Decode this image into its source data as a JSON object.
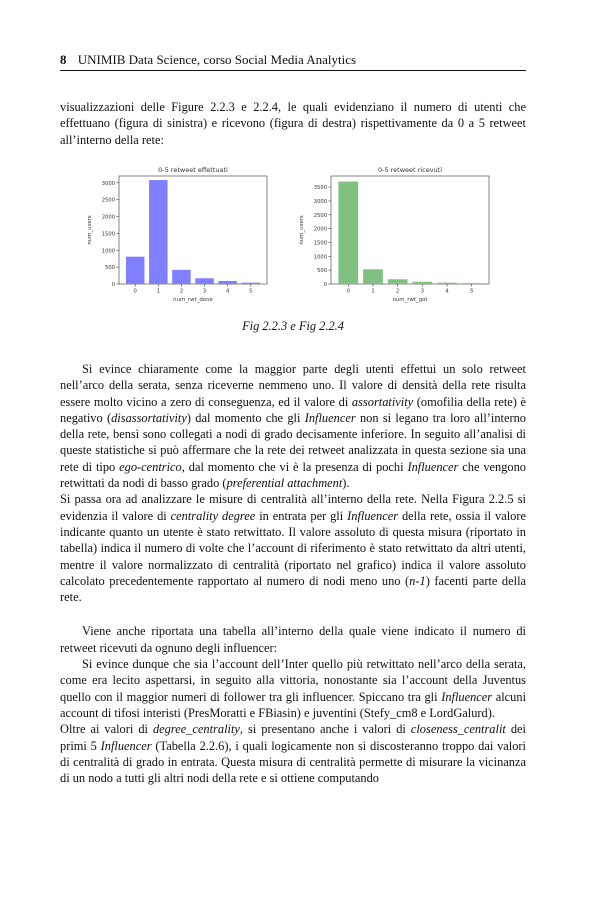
{
  "header": {
    "page_number": "8",
    "title": "UNIMIB Data Science, corso Social Media Analytics"
  },
  "intro": "visualizzazioni delle Figure 2.2.3 e 2.2.4, le quali evidenziano il numero di utenti che effettuano (figura di sinistra) e ricevono (figura di destra) rispettivamente da 0 a 5 retweet all’interno della rete:",
  "figure_caption": "Fig 2.2.3 e Fig 2.2.4",
  "chart_data": [
    {
      "type": "bar",
      "title": "0-5 retweet effettuati",
      "xlabel": "num_rwt_done",
      "ylabel": "num_users",
      "categories": [
        "0",
        "1",
        "2",
        "3",
        "4",
        "5"
      ],
      "values": [
        810,
        3080,
        420,
        170,
        90,
        40
      ],
      "ylim": [
        0,
        3200
      ],
      "yticks": [
        0,
        500,
        1000,
        1500,
        2000,
        2500,
        3000
      ],
      "color": "#8080ff",
      "grid": false
    },
    {
      "type": "bar",
      "title": "0-5 retweet ricevuti",
      "xlabel": "num_rwt_got",
      "ylabel": "num_users",
      "categories": [
        "0",
        "1",
        "2",
        "3",
        "4",
        "5"
      ],
      "values": [
        3700,
        530,
        170,
        80,
        50,
        30
      ],
      "ylim": [
        0,
        3900
      ],
      "yticks": [
        0,
        500,
        1000,
        1500,
        2000,
        2500,
        3000,
        3500
      ],
      "color": "#80c080",
      "grid": false
    }
  ],
  "p1": {
    "s1": "Si evince chiaramente come la maggior parte degli utenti effettui un solo retweet nell’arco della serata, senza riceverne nemmeno uno. Il valore di densità della rete risulta essere molto vicino a zero di conseguenza, ed il valore di ",
    "e1": "assortativity",
    "s2": " (omofilia della rete) è negativo (",
    "e2": "disassortativity",
    "s3": ") dal momento che gli ",
    "e3": "Influencer",
    "s4": " non si legano tra loro all’interno della rete, bensì sono collegati a nodi di grado decisamente inferiore. In seguito all’analisi di queste statistiche si può affermare che la rete dei retweet analizzata in questa sezione sia una rete di tipo ",
    "e4": "ego-centrico",
    "s5": ", dal momento che vi è la presenza di pochi ",
    "e5": "Influencer",
    "s6": " che vengono retwittati da nodi di basso grado (",
    "e6": "preferential attachment",
    "s7": ")."
  },
  "p2": {
    "s1": "Si passa ora ad analizzare le misure di centralità all’interno della rete. Nella Figura 2.2.5 si evidenzia il valore di ",
    "e1": "centrality degree",
    "s2": " in entrata per gli ",
    "e2": "Influencer",
    "s3": " della rete, ossia il valore indicante quanto un utente è stato retwittato. Il valore assoluto di questa misura (riportato in tabella) indica il numero di volte che l’account di riferimento è stato retwittato da altri utenti, mentre il valore normalizzato di centralità (riportato nel grafico) indica il valore assoluto calcolato precedentemente rapportato al numero di nodi meno uno (",
    "e3": "n-1",
    "s4": ") facenti parte della rete."
  },
  "p3": "Viene anche riportata una tabella all’interno della quale viene indicato il numero di retweet ricevuti da ognuno degli influencer:",
  "p4": "Si evince dunque che sia l’account dell’Inter quello più retwittato nell’arco della serata, come era lecito aspettarsi, in seguito alla vittoria, nonostante sia l’account della Juventus quello con il maggior numeri di follower tra gli influencer. Spiccano tra gli ",
  "p4b": {
    "e1": "Influencer",
    "s1": " alcuni account di tifosi interisti (PresMoratti e FBiasin) e juventini (Stefy_cm8 e LordGalurd)."
  },
  "p5": {
    "s1": "Oltre ai valori di ",
    "e1": "degree_centrality",
    "s2": ", si presentano anche i valori di ",
    "e2": "closeness_centralit",
    "s3": " dei primi 5 ",
    "e3": "Influencer",
    "s4": " (Tabella 2.2.6), i quali logicamente non si discosteranno troppo dai valori di centralità di grado in entrata. Questa misura di centralità permette di misurare la vicinanza di un nodo a tutti gli altri nodi della rete e si ottiene computando"
  }
}
